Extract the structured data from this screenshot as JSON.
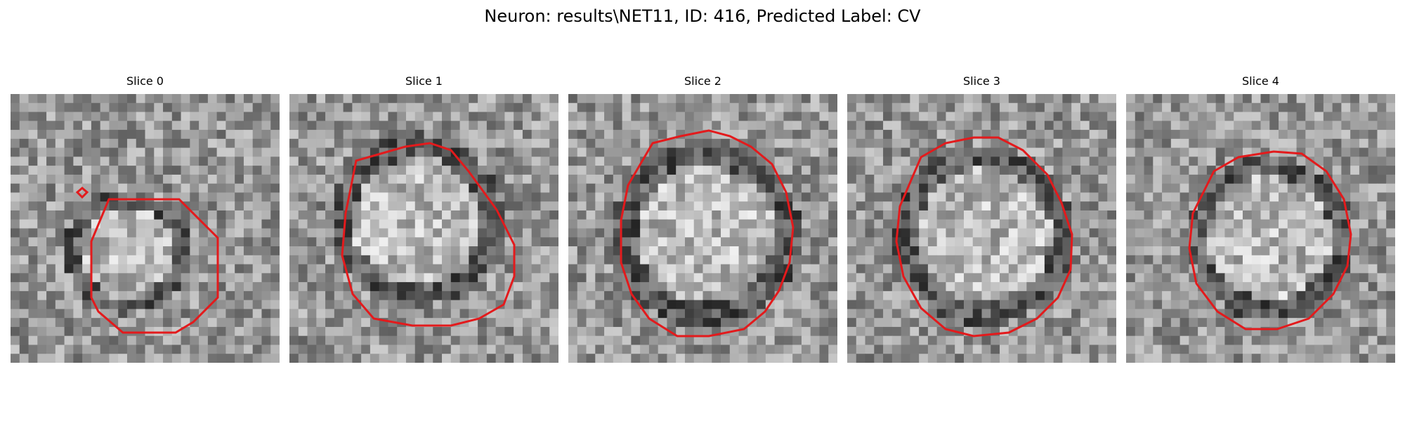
{
  "figure": {
    "title": "Neuron: results\\NET11, ID: 416, Predicted Label: CV",
    "contour_color": "#e31a1c"
  },
  "slices": [
    {
      "label": "Slice 0"
    },
    {
      "label": "Slice 1"
    },
    {
      "label": "Slice 2"
    },
    {
      "label": "Slice 3"
    },
    {
      "label": "Slice 4"
    }
  ]
}
